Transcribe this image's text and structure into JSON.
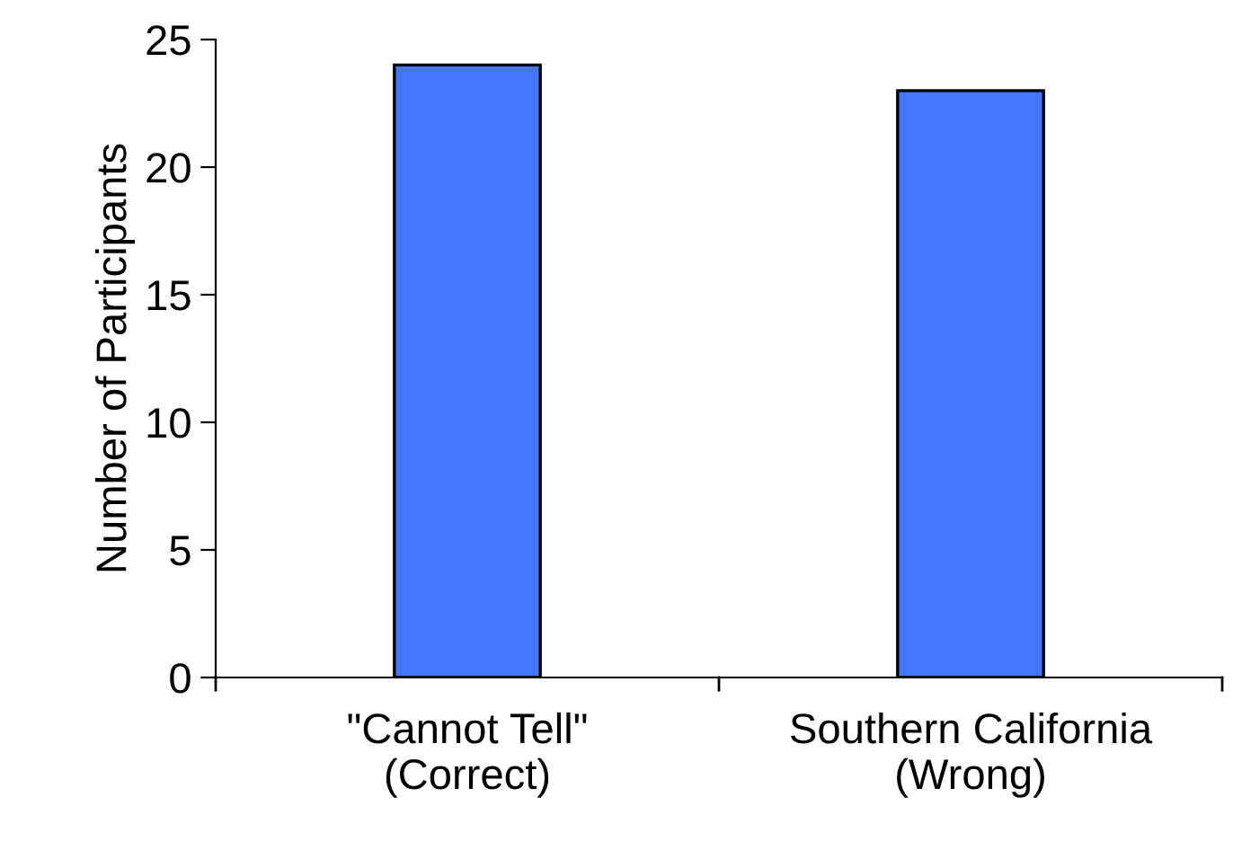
{
  "chart_data": {
    "type": "bar",
    "ylabel": "Number of Participants",
    "categories": [
      "\"Cannot Tell\"\n(Correct)",
      "Southern California\n(Wrong)"
    ],
    "values": [
      24,
      23
    ],
    "color": "#4477ff",
    "ylim": [
      0,
      25
    ],
    "yticks": [
      0,
      5,
      10,
      15,
      20,
      25
    ],
    "grid": false
  }
}
